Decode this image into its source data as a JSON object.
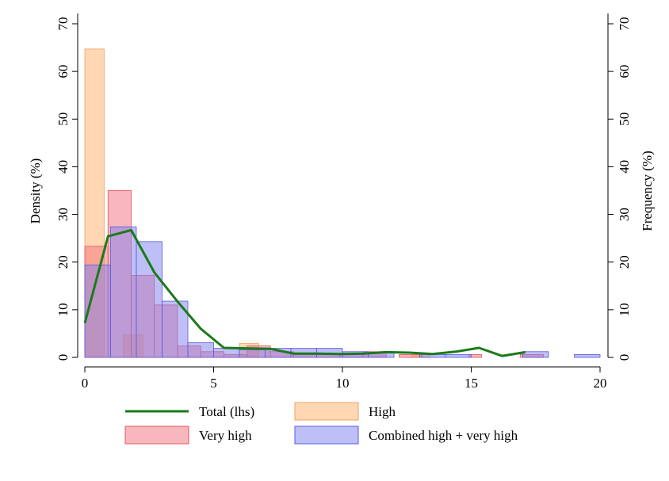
{
  "chart_data": {
    "type": "bar",
    "title": "",
    "xlabel": "",
    "ylabel_left": "Density (%)",
    "ylabel_right": "Frequency (%)",
    "xlim": [
      0,
      20
    ],
    "ylim": [
      0,
      70
    ],
    "xticks": [
      "0",
      "5",
      "10",
      "15",
      "20"
    ],
    "yticks": [
      "0",
      "10",
      "20",
      "30",
      "40",
      "50",
      "60",
      "70"
    ],
    "grid": false,
    "legend_position": "bottom",
    "legend": [
      {
        "label": "Total (lhs)",
        "kind": "line",
        "series": "total"
      },
      {
        "label": "High",
        "kind": "bar",
        "series": "high"
      },
      {
        "label": "Very high",
        "kind": "bar",
        "series": "very_high"
      },
      {
        "label": "Combined high + very high",
        "kind": "bar",
        "series": "combined"
      }
    ],
    "colors": {
      "total": "#1a7a1a",
      "high_fill": "#ffc38a",
      "high_stroke": "#f0a060",
      "very_high_fill": "#f26f7b",
      "very_high_stroke": "#e05560",
      "combined_fill": "#7f7fef",
      "combined_stroke": "#5a5ae0"
    },
    "series": {
      "high": [
        {
          "x0": 0.0,
          "x1": 0.75,
          "y": 64.7
        },
        {
          "x0": 1.5,
          "x1": 2.25,
          "y": 4.7
        },
        {
          "x0": 6.0,
          "x1": 6.75,
          "y": 2.9
        },
        {
          "x0": 12.7,
          "x1": 13.4,
          "y": 0.6
        }
      ],
      "very_high": [
        {
          "x0": 0.0,
          "x1": 0.9,
          "y": 23.3
        },
        {
          "x0": 0.9,
          "x1": 1.8,
          "y": 35.0
        },
        {
          "x0": 1.8,
          "x1": 2.7,
          "y": 17.2
        },
        {
          "x0": 2.7,
          "x1": 3.6,
          "y": 11.0
        },
        {
          "x0": 3.6,
          "x1": 4.5,
          "y": 2.4
        },
        {
          "x0": 4.5,
          "x1": 5.4,
          "y": 1.2
        },
        {
          "x0": 5.4,
          "x1": 6.3,
          "y": 0.6
        },
        {
          "x0": 6.3,
          "x1": 7.2,
          "y": 2.4
        },
        {
          "x0": 7.2,
          "x1": 8.1,
          "y": 1.2
        },
        {
          "x0": 8.1,
          "x1": 9.0,
          "y": 0.6
        },
        {
          "x0": 9.0,
          "x1": 9.9,
          "y": 0.6
        },
        {
          "x0": 9.9,
          "x1": 10.8,
          "y": 0.6
        },
        {
          "x0": 10.8,
          "x1": 11.7,
          "y": 1.2
        },
        {
          "x0": 12.2,
          "x1": 13.1,
          "y": 0.6
        },
        {
          "x0": 14.9,
          "x1": 15.4,
          "y": 0.6
        },
        {
          "x0": 16.9,
          "x1": 17.8,
          "y": 0.6
        }
      ],
      "combined": [
        {
          "x0": 0.0,
          "x1": 1.0,
          "y": 19.4
        },
        {
          "x0": 1.0,
          "x1": 2.0,
          "y": 27.4
        },
        {
          "x0": 2.0,
          "x1": 3.0,
          "y": 24.3
        },
        {
          "x0": 3.0,
          "x1": 4.0,
          "y": 11.8
        },
        {
          "x0": 4.0,
          "x1": 5.0,
          "y": 3.1
        },
        {
          "x0": 5.0,
          "x1": 6.0,
          "y": 1.9
        },
        {
          "x0": 6.0,
          "x1": 7.0,
          "y": 1.6
        },
        {
          "x0": 7.0,
          "x1": 8.0,
          "y": 1.9
        },
        {
          "x0": 8.0,
          "x1": 9.0,
          "y": 1.9
        },
        {
          "x0": 9.0,
          "x1": 10.0,
          "y": 1.9
        },
        {
          "x0": 10.0,
          "x1": 11.0,
          "y": 1.2
        },
        {
          "x0": 11.0,
          "x1": 12.0,
          "y": 0.9
        },
        {
          "x0": 13.0,
          "x1": 14.0,
          "y": 0.6
        },
        {
          "x0": 14.0,
          "x1": 15.0,
          "y": 0.6
        },
        {
          "x0": 17.0,
          "x1": 18.0,
          "y": 1.2
        },
        {
          "x0": 19.0,
          "x1": 20.0,
          "y": 0.6
        }
      ],
      "total": {
        "x": [
          0.0,
          0.9,
          1.8,
          2.7,
          3.6,
          4.5,
          5.4,
          6.3,
          7.2,
          8.1,
          9.0,
          9.9,
          10.8,
          11.7,
          12.6,
          13.5,
          14.4,
          15.3,
          16.2,
          17.1
        ],
        "y": [
          7.2,
          25.4,
          26.7,
          17.8,
          11.7,
          6.0,
          2.0,
          1.9,
          1.8,
          0.8,
          0.8,
          0.7,
          0.8,
          1.1,
          1.0,
          0.7,
          1.2,
          2.0,
          0.3,
          1.1
        ]
      }
    }
  }
}
